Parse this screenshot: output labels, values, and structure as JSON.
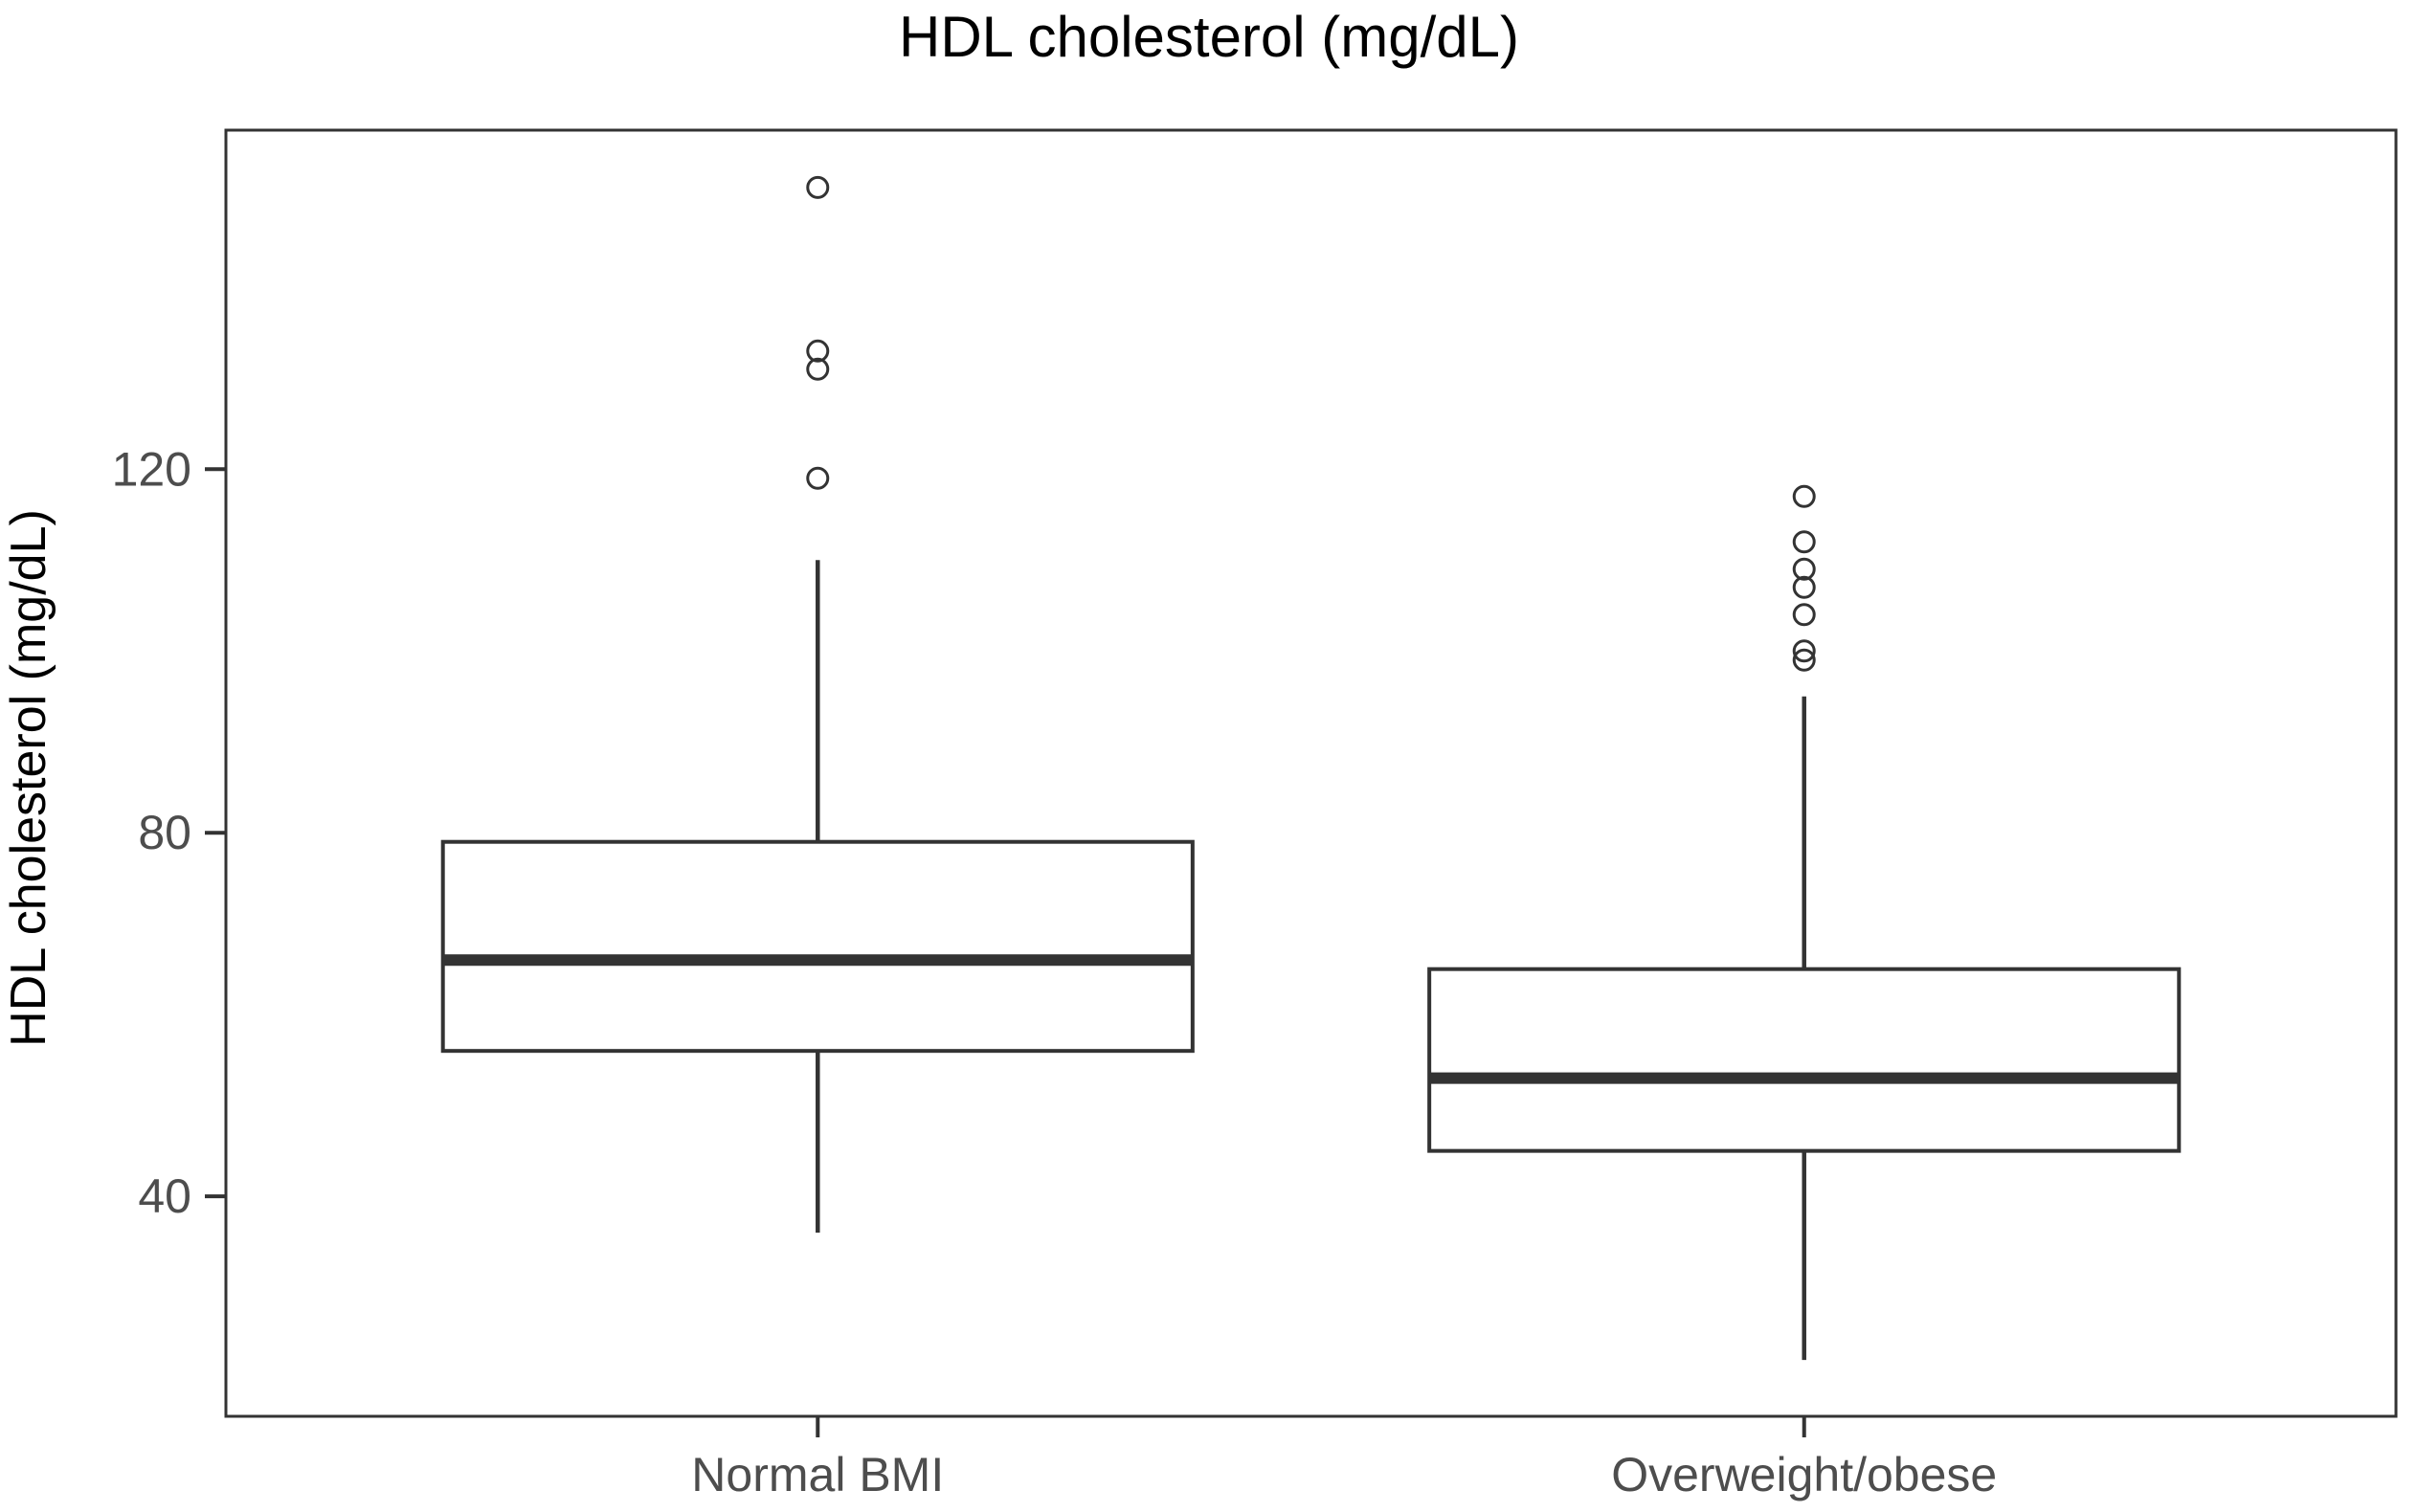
{
  "chart_data": {
    "type": "boxplot",
    "title": "HDL cholesterol (mg/dL)",
    "ylabel": "HDL cholesterol (mg/dL)",
    "xlabel": "",
    "categories": [
      "Normal BMI",
      "Overweight/obese"
    ],
    "yticks": [
      40,
      80,
      120
    ],
    "ylim": [
      15.8,
      157.3
    ],
    "grid": "off",
    "series": [
      {
        "category": "Normal BMI",
        "whisker_low": 36,
        "q1": 56,
        "median": 66,
        "q3": 79,
        "whisker_high": 110,
        "outliers": [
          119,
          131,
          133,
          151
        ]
      },
      {
        "category": "Overweight/obese",
        "whisker_low": 22,
        "q1": 45,
        "median": 53,
        "q3": 65,
        "whisker_high": 95,
        "outliers": [
          99,
          100,
          104,
          107,
          109,
          112,
          117
        ]
      }
    ],
    "colors": {
      "box_stroke": "#333333",
      "box_fill": "#ffffff",
      "median_stroke": "#333333",
      "whisker_stroke": "#333333",
      "outlier_stroke": "#333333",
      "panel_border": "#333333",
      "tick_mark": "#333333",
      "tick_label": "#4d4d4d",
      "category_label": "#4d4d4d",
      "title_color": "#000000",
      "background": "#ffffff"
    }
  }
}
